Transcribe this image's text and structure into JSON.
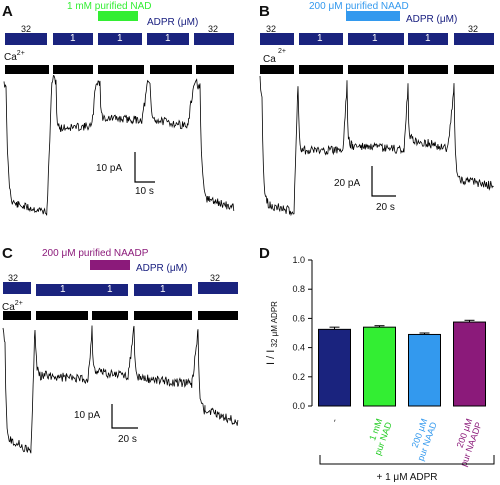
{
  "colors": {
    "navy": "#1a237e",
    "green": "#33ee33",
    "blue": "#3399ee",
    "purple": "#8b1a7a",
    "black": "#000000"
  },
  "panels": {
    "A": {
      "label": "A",
      "annotation": "1 mM purified NAD",
      "adpr_label": "ADPR (μM)",
      "bars": [
        "32",
        "1",
        "1",
        "1",
        "32"
      ],
      "ca_label": "Ca",
      "ca_sup": "2+",
      "scale_y": "10 pA",
      "scale_x": "10 s"
    },
    "B": {
      "label": "B",
      "annotation": "200 μM purified NAAD",
      "adpr_label": "ADPR (μM)",
      "bars": [
        "32",
        "1",
        "1",
        "1",
        "32"
      ],
      "ca_label": "Ca",
      "ca_sup": "2+",
      "scale_y": "20 pA",
      "scale_x": "20 s"
    },
    "C": {
      "label": "C",
      "annotation": "200 μM purified NAADP",
      "adpr_label": "ADPR (μM)",
      "bars": [
        "32",
        "1",
        "1",
        "1",
        "32"
      ],
      "ca_label": "Ca",
      "ca_sup": "2+",
      "scale_y": "10 pA",
      "scale_x": "20 s"
    },
    "D": {
      "label": "D"
    }
  },
  "chart_data": {
    "type": "bar",
    "ylabel_main": "I / I",
    "ylabel_sub": "32 μM ADPR",
    "ylim": [
      0.0,
      1.0
    ],
    "yticks": [
      "0.0",
      "0.2",
      "0.4",
      "0.6",
      "0.8",
      "1.0"
    ],
    "categories": [
      {
        "lines": [
          "-"
        ],
        "color": "#111111"
      },
      {
        "lines": [
          "1 mM",
          "pur NAD"
        ],
        "color": "#22cc22"
      },
      {
        "lines": [
          "200 μM",
          "pur NAAD"
        ],
        "color": "#3399ee"
      },
      {
        "lines": [
          "200 μM",
          "pur NAADP"
        ],
        "color": "#8b1a7a"
      }
    ],
    "values": [
      0.525,
      0.54,
      0.49,
      0.575
    ],
    "errors": [
      0.015,
      0.01,
      0.01,
      0.012
    ],
    "bar_colors": [
      "#1a237e",
      "#33ee33",
      "#3399ee",
      "#8b1a7a"
    ],
    "group_label": "+ 1 μM ADPR"
  }
}
